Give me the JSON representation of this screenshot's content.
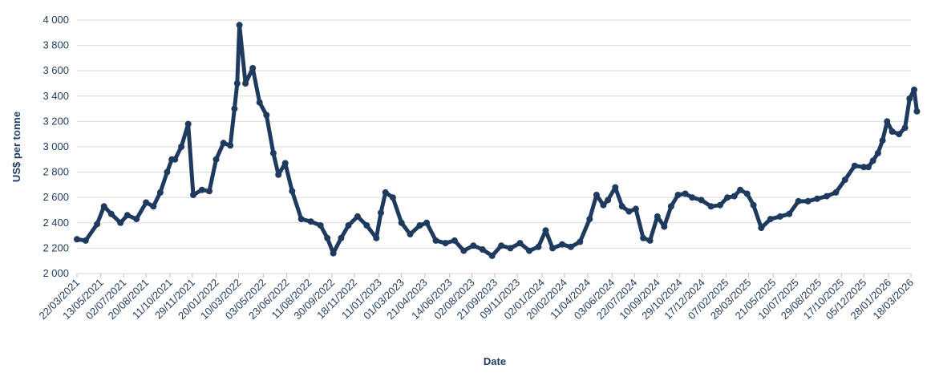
{
  "chart_data": {
    "type": "line",
    "title": "",
    "xlabel": "Date",
    "ylabel": "US$ per tonne",
    "ylim": [
      2000,
      4000
    ],
    "y_ticks": [
      "2 000",
      "2 200",
      "2 400",
      "2 600",
      "2 800",
      "3 000",
      "3 200",
      "3 400",
      "3 600",
      "3 800",
      "4 000"
    ],
    "x_ticks": [
      "22/03/2021",
      "13/05/2021",
      "02/07/2021",
      "20/08/2021",
      "11/10/2021",
      "29/11/2021",
      "20/01/2022",
      "10/03/2022",
      "03/05/2022",
      "23/06/2022",
      "11/08/2022",
      "30/09/2022",
      "18/11/2022",
      "11/01/2023",
      "01/03/2023",
      "21/04/2023",
      "14/06/2023",
      "02/08/2023",
      "21/09/2023",
      "09/11/2023",
      "02/01/2024",
      "20/02/2024",
      "11/04/2024",
      "03/06/2024",
      "22/07/2024",
      "10/09/2024",
      "29/10/2024",
      "17/12/2024",
      "07/02/2025",
      "28/03/2025",
      "21/05/2025",
      "10/07/2025",
      "29/08/2025",
      "17/10/2025",
      "05/12/2025",
      "28/01/2026",
      "18/03/2026"
    ],
    "grid": true,
    "legend": "none",
    "series_color": "#1f3a5f",
    "series": [
      {
        "x": [
          "2021-03-22",
          "2021-04-10",
          "2021-05-05",
          "2021-05-20",
          "2021-06-05",
          "2021-06-25",
          "2021-07-10",
          "2021-07-30",
          "2021-08-20",
          "2021-09-05",
          "2021-09-20",
          "2021-10-05",
          "2021-10-15",
          "2021-10-22",
          "2021-11-05",
          "2021-11-20",
          "2021-12-01",
          "2021-12-20",
          "2022-01-05",
          "2022-01-20",
          "2022-02-05",
          "2022-02-20",
          "2022-03-01",
          "2022-03-07",
          "2022-03-12",
          "2022-03-25",
          "2022-04-10",
          "2022-04-25",
          "2022-05-10",
          "2022-05-25",
          "2022-06-05",
          "2022-06-20",
          "2022-07-05",
          "2022-07-25",
          "2022-08-15",
          "2022-09-05",
          "2022-09-20",
          "2022-10-03",
          "2022-10-20",
          "2022-11-05",
          "2022-11-25",
          "2022-12-15",
          "2023-01-05",
          "2023-01-15",
          "2023-01-25",
          "2023-02-10",
          "2023-03-01",
          "2023-03-20",
          "2023-04-10",
          "2023-04-25",
          "2023-05-15",
          "2023-06-05",
          "2023-06-25",
          "2023-07-15",
          "2023-08-05",
          "2023-08-25",
          "2023-09-15",
          "2023-10-05",
          "2023-10-25",
          "2023-11-15",
          "2023-12-05",
          "2023-12-25",
          "2024-01-10",
          "2024-01-25",
          "2024-02-15",
          "2024-03-05",
          "2024-03-25",
          "2024-04-15",
          "2024-04-30",
          "2024-05-15",
          "2024-05-25",
          "2024-06-10",
          "2024-06-25",
          "2024-07-10",
          "2024-07-25",
          "2024-08-10",
          "2024-08-25",
          "2024-09-10",
          "2024-09-25",
          "2024-10-10",
          "2024-10-25",
          "2024-11-10",
          "2024-11-25",
          "2024-12-15",
          "2025-01-05",
          "2025-01-25",
          "2025-02-10",
          "2025-02-25",
          "2025-03-10",
          "2025-03-25",
          "2025-04-08",
          "2025-04-25",
          "2025-05-15",
          "2025-06-05",
          "2025-06-25",
          "2025-07-15",
          "2025-08-05",
          "2025-08-25",
          "2025-09-15",
          "2025-10-05",
          "2025-10-25",
          "2025-11-15",
          "2025-12-05",
          "2025-12-15",
          "2025-12-25",
          "2026-01-05",
          "2026-01-15",
          "2026-01-25",
          "2026-02-05",
          "2026-02-20",
          "2026-03-05",
          "2026-03-15",
          "2026-03-25",
          "2026-03-31"
        ],
        "values": [
          2270,
          2260,
          2390,
          2530,
          2470,
          2400,
          2460,
          2430,
          2560,
          2530,
          2640,
          2800,
          2900,
          2900,
          3000,
          3180,
          2620,
          2660,
          2650,
          2900,
          3030,
          3010,
          3300,
          3500,
          3960,
          3500,
          3620,
          3350,
          3250,
          2950,
          2780,
          2870,
          2650,
          2430,
          2410,
          2380,
          2280,
          2160,
          2280,
          2380,
          2450,
          2380,
          2280,
          2480,
          2640,
          2600,
          2400,
          2310,
          2380,
          2400,
          2260,
          2240,
          2260,
          2180,
          2220,
          2190,
          2140,
          2220,
          2200,
          2240,
          2180,
          2210,
          2340,
          2200,
          2230,
          2210,
          2250,
          2430,
          2620,
          2540,
          2580,
          2680,
          2530,
          2490,
          2510,
          2280,
          2260,
          2450,
          2370,
          2530,
          2620,
          2630,
          2600,
          2580,
          2530,
          2540,
          2600,
          2610,
          2660,
          2630,
          2540,
          2360,
          2430,
          2450,
          2470,
          2570,
          2570,
          2590,
          2610,
          2640,
          2740,
          2850,
          2840,
          2840,
          2890,
          2950,
          3050,
          3200,
          3120,
          3100,
          3150,
          3380,
          3450,
          3280
        ]
      }
    ]
  }
}
